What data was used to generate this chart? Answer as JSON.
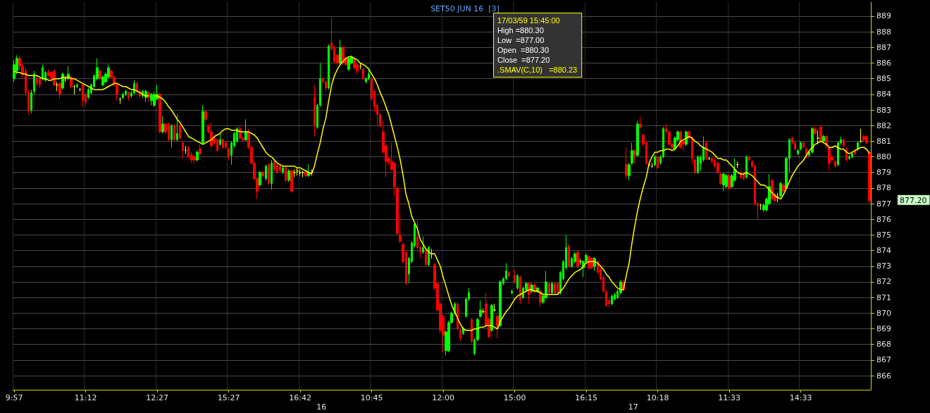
{
  "chart_data": {
    "type": "candlestick",
    "title": "SET50 JUN 16  [3]",
    "categories": [
      "9:57",
      null,
      null,
      null,
      null,
      null,
      null,
      null,
      null,
      null,
      null,
      null,
      null,
      null,
      null,
      null,
      null,
      null,
      null,
      null,
      null,
      null,
      null,
      null,
      null,
      "11:12",
      null,
      null,
      null,
      null,
      null,
      null,
      null,
      null,
      null,
      null,
      null,
      null,
      null,
      null,
      null,
      null,
      null,
      null,
      null,
      null,
      null,
      null,
      null,
      null,
      "12:27",
      null,
      null,
      null,
      null,
      null,
      null,
      null,
      null,
      null,
      null,
      null,
      null,
      null,
      null,
      null,
      null,
      null,
      null,
      null,
      null,
      null,
      null,
      null,
      null,
      "15:27",
      null,
      null,
      null,
      null,
      null,
      null,
      null,
      null,
      null,
      null,
      null,
      null,
      null,
      null,
      null,
      null,
      null,
      null,
      null,
      null,
      null,
      null,
      null,
      null,
      "16:42",
      null,
      null,
      null,
      null,
      null,
      null,
      null,
      null,
      null,
      null,
      null,
      null,
      null,
      null,
      null,
      null,
      null,
      null,
      null,
      null,
      null,
      null,
      null,
      null,
      "10:45",
      null,
      null,
      null,
      null,
      null,
      null,
      null,
      null,
      null,
      null,
      null,
      null,
      null,
      null,
      null,
      null,
      null,
      null,
      null,
      null,
      null,
      null,
      null,
      null,
      "12:00",
      null,
      null,
      null,
      null,
      null,
      null,
      null,
      null,
      null,
      null,
      null,
      null,
      null,
      null,
      null,
      null,
      null,
      null,
      null,
      null,
      null,
      null,
      null,
      null,
      "15:00",
      null,
      null,
      null,
      null,
      null,
      null,
      null,
      null,
      null,
      null,
      null,
      null,
      null,
      null,
      null,
      null,
      null,
      null,
      null,
      null,
      null,
      null,
      null,
      null,
      "16:15",
      null,
      null,
      null,
      null,
      null,
      null,
      null,
      null,
      null,
      null,
      null,
      null,
      null,
      null,
      null,
      null,
      null,
      null,
      null,
      null,
      null,
      null,
      null,
      null,
      "10:18",
      null,
      null,
      null,
      null,
      null,
      null,
      null,
      null,
      null,
      null,
      null,
      null,
      null,
      null,
      null,
      null,
      null,
      null,
      null,
      null,
      null,
      null,
      null,
      null,
      "11:33",
      null,
      null,
      null,
      null,
      null,
      null,
      null,
      null,
      null,
      null,
      null,
      null,
      null,
      null,
      null,
      null,
      null,
      null,
      null,
      null,
      null,
      null,
      null,
      null,
      "14:33",
      null,
      null,
      null,
      null,
      null,
      null,
      null,
      null,
      null,
      null,
      null,
      null,
      null,
      null,
      null,
      null,
      null,
      null,
      null,
      null,
      null,
      null,
      null,
      null
    ],
    "ylim": [
      865.1,
      889.9
    ],
    "yticks": [
      866,
      867,
      868,
      869,
      870,
      871,
      872,
      873,
      874,
      875,
      876,
      877,
      878,
      879,
      880,
      881,
      882,
      883,
      884,
      885,
      886,
      887,
      888,
      889
    ],
    "grid": true,
    "marker": "none",
    "annotations": [
      "17/03/59 15:45:00",
      "High =880.30",
      "Low  =877.00",
      "Open  =880.30",
      "Close  =877.20",
      ".SMAV(C,10)   =880.23",
      "877.20",
      "16",
      "17"
    ],
    "ohlc": [
      [
        885.0,
        886.2,
        884.8,
        885.9
      ],
      [
        885.5,
        886.5,
        885.3,
        886.3
      ],
      [
        886.3,
        886.5,
        885.6,
        885.8
      ],
      [
        885.8,
        886.0,
        885.1,
        885.3
      ],
      [
        885.5,
        885.7,
        883.9,
        884.1
      ],
      [
        884.1,
        884.3,
        882.7,
        883.0
      ],
      [
        883.0,
        884.3,
        882.8,
        884.1
      ],
      [
        884.2,
        885.5,
        884.0,
        885.3
      ],
      [
        885.0,
        885.2,
        884.5,
        884.7
      ],
      [
        885.0,
        885.1,
        884.4,
        884.6
      ],
      [
        885.0,
        885.9,
        884.9,
        885.7
      ],
      [
        884.9,
        885.5,
        884.8,
        885.4
      ],
      [
        885.4,
        885.6,
        885.1,
        885.2
      ],
      [
        885.4,
        885.5,
        884.9,
        885.0
      ],
      [
        885.5,
        885.6,
        884.5,
        884.6
      ],
      [
        884.6,
        884.8,
        884.2,
        884.6
      ],
      [
        884.7,
        884.8,
        883.7,
        884.0
      ],
      [
        884.4,
        885.4,
        884.3,
        885.3
      ],
      [
        885.0,
        885.1,
        884.8,
        885.0
      ],
      [
        885.0,
        885.8,
        884.9,
        885.3
      ],
      [
        885.1,
        885.2,
        884.4,
        884.5
      ],
      [
        884.5,
        884.6,
        884.0,
        884.5
      ],
      [
        884.5,
        884.7,
        884.4,
        884.6
      ],
      [
        884.3,
        884.4,
        884.2,
        884.3
      ],
      [
        884.6,
        884.7,
        883.2,
        883.6
      ],
      [
        884.0,
        884.1,
        883.3,
        883.5
      ],
      [
        883.8,
        884.4,
        883.7,
        884.3
      ],
      [
        884.1,
        884.7,
        884.0,
        884.6
      ],
      [
        884.5,
        885.3,
        884.4,
        885.2
      ],
      [
        885.0,
        886.3,
        884.9,
        885.7
      ],
      [
        885.5,
        885.6,
        884.9,
        885.0
      ],
      [
        884.6,
        885.2,
        884.5,
        885.1
      ],
      [
        884.8,
        885.4,
        884.7,
        885.3
      ],
      [
        885.1,
        885.9,
        885.0,
        885.7
      ],
      [
        885.5,
        885.6,
        885.0,
        885.1
      ],
      [
        885.1,
        885.2,
        884.5,
        884.6
      ],
      [
        884.6,
        884.7,
        883.6,
        884.0
      ],
      [
        883.7,
        883.8,
        883.4,
        883.7
      ],
      [
        883.8,
        884.1,
        883.7,
        884.0
      ],
      [
        884.0,
        884.3,
        883.9,
        884.2
      ],
      [
        884.1,
        884.2,
        883.6,
        883.8
      ],
      [
        883.9,
        884.2,
        883.8,
        884.1
      ],
      [
        884.1,
        884.9,
        884.0,
        884.7
      ],
      [
        884.7,
        884.8,
        884.1,
        884.2
      ],
      [
        884.2,
        884.3,
        883.8,
        883.9
      ],
      [
        883.9,
        884.3,
        883.8,
        884.2
      ],
      [
        883.8,
        884.3,
        883.5,
        884.2
      ],
      [
        884.1,
        884.2,
        883.5,
        883.8
      ],
      [
        883.6,
        884.1,
        883.3,
        884.0
      ],
      [
        883.3,
        884.2,
        883.2,
        884.0
      ],
      [
        883.7,
        884.6,
        883.6,
        884.0
      ],
      [
        884.0,
        884.1,
        881.5,
        881.6
      ],
      [
        881.6,
        882.6,
        881.5,
        882.1
      ],
      [
        882.1,
        882.2,
        881.5,
        881.6
      ],
      [
        882.1,
        882.2,
        881.0,
        881.1
      ],
      [
        881.1,
        882.1,
        880.6,
        882.0
      ],
      [
        882.0,
        882.1,
        881.0,
        881.1
      ],
      [
        881.1,
        882.7,
        881.0,
        881.5
      ],
      [
        882.0,
        882.1,
        881.1,
        881.2
      ],
      [
        880.9,
        881.0,
        879.9,
        880.4
      ],
      [
        880.4,
        880.7,
        880.2,
        880.4
      ],
      [
        880.6,
        880.7,
        879.9,
        880.0
      ],
      [
        880.1,
        880.3,
        879.6,
        879.8
      ],
      [
        880.0,
        880.1,
        879.6,
        879.8
      ],
      [
        879.8,
        880.4,
        879.7,
        880.3
      ],
      [
        880.5,
        880.8,
        880.1,
        880.2
      ],
      [
        880.9,
        883.3,
        880.8,
        882.9
      ],
      [
        882.9,
        883.0,
        882.3,
        882.4
      ],
      [
        882.0,
        882.1,
        881.5,
        881.6
      ],
      [
        881.6,
        882.2,
        880.6,
        880.7
      ],
      [
        881.2,
        881.3,
        880.8,
        880.9
      ],
      [
        881.1,
        881.2,
        880.3,
        880.4
      ],
      [
        880.8,
        881.5,
        880.7,
        881.1
      ],
      [
        881.1,
        881.2,
        880.5,
        880.6
      ],
      [
        880.9,
        881.0,
        880.5,
        880.6
      ],
      [
        880.5,
        880.6,
        879.8,
        880.0
      ],
      [
        880.1,
        881.0,
        879.5,
        880.9
      ],
      [
        880.7,
        881.6,
        880.6,
        881.5
      ],
      [
        881.0,
        881.9,
        880.9,
        881.8
      ],
      [
        881.8,
        882.0,
        881.1,
        881.2
      ],
      [
        881.2,
        881.3,
        881.0,
        881.1
      ],
      [
        881.1,
        882.4,
        881.0,
        881.6
      ],
      [
        881.6,
        881.8,
        880.5,
        880.6
      ],
      [
        880.6,
        880.7,
        879.5,
        879.6
      ],
      [
        879.6,
        879.7,
        878.5,
        878.6
      ],
      [
        878.6,
        878.7,
        877.3,
        877.8
      ],
      [
        878.2,
        879.1,
        878.1,
        879.0
      ],
      [
        879.0,
        879.1,
        878.7,
        878.8
      ],
      [
        878.6,
        879.5,
        878.5,
        879.4
      ],
      [
        879.5,
        879.6,
        878.2,
        878.3
      ],
      [
        878.3,
        879.8,
        877.9,
        879.6
      ],
      [
        879.7,
        879.8,
        879.1,
        879.2
      ],
      [
        879.5,
        879.6,
        878.9,
        879.0
      ],
      [
        879.4,
        879.5,
        879.0,
        879.1
      ],
      [
        879.0,
        879.4,
        878.9,
        879.3
      ],
      [
        879.3,
        879.4,
        878.4,
        878.5
      ],
      [
        878.5,
        879.2,
        878.4,
        879.1
      ],
      [
        879.1,
        879.2,
        877.7,
        877.8
      ],
      [
        879.0,
        879.2,
        878.7,
        879.0
      ],
      [
        879.1,
        879.3,
        878.8,
        879.1
      ],
      [
        879.0,
        879.2,
        878.8,
        879.0
      ],
      [
        879.0,
        879.1,
        878.7,
        879.0
      ],
      [
        879.0,
        879.1,
        878.7,
        878.8
      ],
      [
        878.8,
        879.5,
        878.7,
        879.0
      ],
      [
        879.0,
        879.2,
        878.8,
        879.0
      ],
      [
        883.8,
        884.6,
        881.3,
        882.0
      ],
      [
        881.9,
        883.4,
        881.8,
        883.3
      ],
      [
        883.3,
        886.0,
        883.2,
        885.0
      ],
      [
        885.0,
        885.1,
        884.7,
        884.8
      ],
      [
        884.8,
        884.9,
        884.2,
        884.4
      ],
      [
        884.4,
        887.2,
        884.3,
        887.1
      ],
      [
        887.3,
        888.9,
        886.8,
        886.9
      ],
      [
        887.0,
        887.1,
        886.0,
        886.1
      ],
      [
        886.5,
        886.6,
        885.9,
        886.0
      ],
      [
        886.0,
        887.5,
        885.9,
        887.0
      ],
      [
        887.0,
        887.1,
        885.9,
        886.0
      ],
      [
        886.3,
        886.4,
        885.8,
        885.9
      ],
      [
        885.6,
        886.4,
        885.5,
        886.3
      ],
      [
        886.0,
        886.5,
        885.9,
        886.4
      ],
      [
        886.3,
        886.4,
        885.6,
        885.7
      ],
      [
        885.9,
        886.0,
        885.3,
        885.5
      ],
      [
        885.8,
        886.0,
        885.6,
        885.8
      ],
      [
        885.6,
        885.7,
        884.9,
        885.0
      ],
      [
        884.8,
        885.1,
        884.7,
        885.0
      ],
      [
        885.0,
        885.7,
        884.9,
        885.3
      ],
      [
        885.0,
        885.1,
        883.6,
        883.7
      ],
      [
        884.2,
        884.3,
        882.9,
        883.2
      ],
      [
        883.3,
        883.4,
        882.0,
        882.7
      ],
      [
        882.7,
        882.8,
        881.9,
        882.0
      ],
      [
        881.6,
        882.3,
        880.2,
        880.3
      ],
      [
        880.7,
        880.8,
        878.7,
        879.7
      ],
      [
        879.9,
        880.0,
        879.5,
        879.7
      ],
      [
        879.7,
        880.9,
        879.1,
        879.2
      ],
      [
        879.6,
        879.7,
        877.5,
        878.1
      ],
      [
        878.0,
        878.1,
        875.0,
        875.1
      ],
      [
        875.0,
        876.3,
        874.5,
        874.6
      ],
      [
        874.4,
        874.5,
        873.2,
        873.3
      ],
      [
        873.9,
        874.0,
        871.8,
        871.9
      ],
      [
        872.5,
        873.6,
        871.9,
        873.5
      ],
      [
        873.3,
        874.6,
        873.2,
        874.5
      ],
      [
        874.3,
        875.8,
        874.2,
        875.7
      ],
      [
        874.9,
        876.0,
        874.1,
        874.2
      ],
      [
        874.2,
        874.3,
        873.5,
        873.9
      ],
      [
        873.9,
        874.9,
        873.8,
        874.2
      ],
      [
        874.0,
        874.1,
        873.0,
        873.1
      ],
      [
        873.1,
        874.3,
        873.0,
        874.2
      ],
      [
        873.8,
        874.1,
        873.5,
        873.8
      ],
      [
        873.1,
        873.2,
        871.5,
        871.6
      ],
      [
        871.9,
        872.0,
        870.1,
        870.2
      ],
      [
        870.6,
        870.7,
        868.7,
        868.9
      ],
      [
        869.8,
        869.9,
        867.5,
        868.6
      ],
      [
        867.6,
        868.9,
        867.3,
        868.8
      ],
      [
        867.6,
        869.5,
        867.5,
        869.4
      ],
      [
        869.4,
        870.1,
        869.3,
        870.0
      ],
      [
        870.0,
        870.7,
        869.9,
        870.6
      ],
      [
        870.6,
        870.7,
        868.9,
        869.0
      ],
      [
        868.9,
        869.0,
        868.2,
        868.4
      ],
      [
        868.7,
        869.1,
        868.6,
        869.0
      ],
      [
        869.8,
        871.0,
        869.7,
        870.9
      ],
      [
        870.9,
        871.6,
        870.8,
        871.3
      ],
      [
        869.6,
        869.7,
        868.1,
        868.2
      ],
      [
        867.4,
        868.4,
        867.3,
        868.3
      ],
      [
        868.3,
        869.7,
        868.2,
        869.6
      ],
      [
        869.8,
        870.8,
        869.7,
        870.2
      ],
      [
        870.1,
        870.3,
        870.0,
        870.1
      ],
      [
        870.6,
        871.3,
        869.1,
        869.2
      ],
      [
        869.6,
        869.7,
        868.4,
        868.5
      ],
      [
        868.9,
        870.6,
        868.8,
        870.5
      ],
      [
        870.2,
        870.6,
        870.1,
        870.2
      ],
      [
        869.8,
        869.9,
        868.4,
        869.2
      ],
      [
        869.2,
        872.1,
        869.1,
        872.0
      ],
      [
        871.9,
        872.3,
        871.8,
        872.2
      ],
      [
        872.2,
        873.2,
        872.1,
        872.7
      ],
      [
        872.6,
        872.7,
        872.3,
        872.4
      ],
      [
        871.3,
        871.5,
        871.2,
        871.4
      ],
      [
        872.4,
        872.8,
        871.9,
        872.0
      ],
      [
        871.6,
        872.5,
        871.5,
        872.4
      ],
      [
        872.3,
        872.4,
        870.6,
        870.9
      ],
      [
        871.0,
        871.7,
        870.9,
        871.6
      ],
      [
        871.5,
        872.0,
        871.4,
        871.9
      ],
      [
        871.9,
        872.0,
        870.6,
        871.2
      ],
      [
        871.4,
        871.9,
        871.3,
        871.8
      ],
      [
        871.8,
        871.9,
        871.3,
        871.4
      ],
      [
        871.4,
        871.7,
        871.3,
        871.6
      ],
      [
        871.4,
        871.5,
        870.4,
        870.7
      ],
      [
        870.7,
        871.2,
        870.6,
        871.1
      ],
      [
        871.0,
        872.7,
        870.9,
        872.0
      ],
      [
        871.9,
        872.0,
        871.2,
        871.3
      ],
      [
        871.3,
        872.0,
        871.2,
        871.9
      ],
      [
        871.9,
        872.0,
        871.2,
        871.3
      ],
      [
        871.9,
        872.0,
        871.2,
        871.3
      ],
      [
        871.3,
        872.7,
        871.2,
        872.6
      ],
      [
        872.2,
        873.4,
        872.1,
        873.3
      ],
      [
        872.9,
        875.0,
        872.8,
        874.2
      ],
      [
        874.3,
        874.4,
        872.9,
        873.0
      ],
      [
        873.0,
        873.6,
        872.9,
        873.5
      ],
      [
        873.3,
        873.9,
        873.2,
        873.8
      ],
      [
        873.9,
        874.0,
        872.9,
        873.0
      ],
      [
        873.3,
        873.5,
        873.1,
        873.3
      ],
      [
        872.9,
        873.4,
        872.3,
        873.3
      ],
      [
        873.3,
        873.8,
        873.2,
        873.7
      ],
      [
        873.6,
        873.7,
        872.8,
        872.9
      ],
      [
        873.5,
        873.6,
        872.8,
        872.9
      ],
      [
        873.0,
        873.6,
        872.7,
        873.5
      ],
      [
        873.3,
        873.4,
        872.5,
        872.6
      ],
      [
        872.8,
        872.9,
        872.1,
        872.2
      ],
      [
        872.3,
        872.4,
        871.3,
        871.4
      ],
      [
        871.4,
        871.5,
        870.4,
        870.5
      ],
      [
        870.8,
        870.9,
        870.4,
        870.6
      ],
      [
        870.6,
        871.2,
        870.5,
        871.1
      ],
      [
        870.9,
        871.3,
        870.8,
        871.2
      ],
      [
        871.0,
        871.5,
        870.9,
        871.4
      ],
      [
        871.3,
        872.1,
        871.2,
        872.0
      ],
      [
        872.0,
        872.1,
        871.4,
        871.5
      ],
      [
        879.5,
        880.6,
        878.6,
        878.8
      ],
      [
        878.8,
        879.6,
        878.5,
        879.5
      ],
      [
        879.6,
        880.9,
        879.5,
        880.4
      ],
      [
        880.4,
        880.5,
        879.6,
        880.1
      ],
      [
        880.1,
        882.3,
        880.0,
        882.1
      ],
      [
        882.1,
        882.6,
        881.8,
        881.9
      ],
      [
        881.4,
        881.5,
        880.7,
        880.8
      ],
      [
        880.9,
        881.0,
        879.5,
        879.6
      ],
      [
        879.5,
        879.7,
        879.4,
        879.5
      ],
      [
        879.4,
        879.6,
        879.3,
        879.4
      ],
      [
        879.5,
        880.1,
        879.4,
        880.0
      ],
      [
        880.0,
        880.1,
        879.2,
        879.3
      ],
      [
        879.6,
        880.1,
        879.5,
        880.0
      ],
      [
        880.0,
        881.9,
        879.9,
        881.8
      ],
      [
        881.8,
        882.1,
        881.5,
        881.6
      ],
      [
        881.6,
        881.7,
        880.7,
        880.8
      ],
      [
        880.8,
        880.9,
        880.5,
        880.6
      ],
      [
        880.5,
        881.3,
        880.4,
        881.2
      ],
      [
        881.1,
        881.7,
        881.0,
        881.6
      ],
      [
        881.6,
        881.7,
        880.5,
        880.6
      ],
      [
        881.0,
        881.1,
        880.4,
        880.8
      ],
      [
        880.8,
        881.7,
        880.7,
        881.6
      ],
      [
        881.6,
        881.7,
        881.1,
        881.2
      ],
      [
        881.2,
        881.3,
        879.5,
        879.9
      ],
      [
        879.8,
        879.9,
        878.9,
        879.0
      ],
      [
        879.0,
        880.1,
        878.9,
        880.0
      ],
      [
        879.6,
        880.1,
        879.1,
        880.0
      ],
      [
        879.8,
        881.3,
        879.7,
        880.6
      ],
      [
        880.9,
        881.0,
        879.8,
        879.9
      ],
      [
        879.9,
        880.0,
        879.8,
        879.9
      ],
      [
        879.9,
        880.0,
        879.6,
        879.7
      ],
      [
        879.8,
        879.9,
        879.3,
        879.4
      ],
      [
        879.6,
        879.7,
        878.9,
        879.0
      ],
      [
        878.9,
        879.0,
        878.2,
        878.3
      ],
      [
        878.2,
        879.0,
        877.8,
        878.9
      ],
      [
        878.1,
        878.9,
        878.0,
        878.8
      ],
      [
        878.8,
        878.9,
        877.9,
        878.0
      ],
      [
        878.1,
        878.9,
        878.0,
        878.8
      ],
      [
        878.5,
        879.9,
        878.4,
        879.2
      ],
      [
        879.5,
        879.7,
        879.3,
        879.5
      ],
      [
        879.0,
        879.1,
        878.6,
        878.7
      ],
      [
        878.9,
        879.0,
        878.5,
        878.6
      ],
      [
        878.7,
        880.1,
        878.6,
        880.0
      ],
      [
        880.0,
        880.1,
        879.7,
        879.8
      ],
      [
        879.7,
        879.8,
        879.3,
        879.4
      ],
      [
        879.4,
        879.5,
        876.9,
        877.0
      ],
      [
        877.0,
        877.1,
        876.0,
        876.9
      ],
      [
        876.9,
        877.0,
        876.6,
        876.9
      ],
      [
        876.6,
        877.0,
        876.5,
        876.9
      ],
      [
        876.6,
        877.4,
        876.5,
        877.3
      ],
      [
        877.0,
        878.9,
        876.9,
        878.1
      ],
      [
        878.5,
        878.6,
        877.2,
        877.3
      ],
      [
        877.6,
        877.7,
        877.1,
        877.2
      ],
      [
        877.4,
        877.7,
        877.1,
        877.4
      ],
      [
        877.5,
        878.4,
        877.4,
        878.3
      ],
      [
        878.2,
        878.3,
        877.7,
        877.8
      ],
      [
        878.0,
        880.0,
        877.9,
        879.9
      ],
      [
        879.9,
        881.2,
        879.0,
        881.1
      ],
      [
        881.2,
        881.3,
        880.8,
        880.9
      ],
      [
        880.9,
        881.0,
        880.4,
        880.5
      ],
      [
        880.2,
        880.5,
        880.1,
        880.4
      ],
      [
        880.5,
        881.0,
        880.4,
        880.9
      ],
      [
        880.9,
        881.0,
        880.5,
        880.6
      ],
      [
        880.5,
        880.6,
        879.9,
        880.0
      ],
      [
        880.1,
        880.4,
        880.0,
        880.3
      ],
      [
        880.3,
        881.9,
        880.2,
        881.8
      ],
      [
        881.8,
        882.0,
        881.4,
        881.5
      ],
      [
        881.2,
        881.7,
        880.8,
        881.2
      ],
      [
        881.9,
        882.0,
        880.9,
        881.0
      ],
      [
        881.0,
        881.4,
        880.9,
        881.3
      ],
      [
        881.3,
        881.4,
        880.6,
        880.7
      ],
      [
        880.6,
        880.7,
        879.1,
        879.6
      ],
      [
        880.0,
        880.1,
        879.7,
        879.8
      ],
      [
        879.7,
        879.8,
        879.3,
        879.4
      ],
      [
        879.5,
        881.0,
        879.4,
        880.9
      ],
      [
        880.9,
        881.3,
        880.8,
        881.1
      ],
      [
        881.1,
        881.2,
        880.6,
        880.7
      ],
      [
        880.5,
        880.6,
        879.7,
        879.8
      ],
      [
        879.9,
        880.1,
        879.8,
        880.0
      ],
      [
        880.0,
        880.3,
        879.9,
        880.2
      ],
      [
        880.4,
        880.5,
        880.1,
        880.2
      ],
      [
        880.5,
        881.0,
        880.4,
        880.9
      ],
      [
        881.0,
        881.8,
        880.9,
        881.0
      ],
      [
        881.3,
        881.4,
        880.9,
        881.1
      ],
      [
        881.3,
        881.4,
        880.8,
        880.9
      ],
      [
        880.3,
        880.3,
        877.0,
        877.2
      ]
    ],
    "colors": [
      "#00ff00",
      "#00ff00",
      "#ff0000",
      "#ff0000",
      "#ff0000",
      "#ff0000",
      "#00ff00",
      "#00ff00",
      "#ff0000",
      "#ff0000",
      "#00ff00",
      "#00ff00",
      "#ff0000",
      "#ff0000",
      "#ff0000",
      "#ffff00",
      "#ff0000",
      "#00ff00",
      "#ffff00",
      "#00ff00",
      "#ff0000",
      "#ffff00",
      "#00ff00",
      "#ffff00",
      "#ff0000",
      "#ff0000",
      "#00ff00",
      "#00ff00",
      "#00ff00",
      "#00ff00",
      "#ff0000",
      "#00ff00",
      "#00ff00",
      "#00ff00",
      "#ff0000",
      "#ff0000",
      "#ff0000",
      "#ffff00",
      "#00ff00",
      "#00ff00",
      "#ff0000",
      "#00ff00",
      "#00ff00",
      "#ff0000",
      "#ff0000",
      "#00ff00",
      "#00ff00",
      "#ff0000",
      "#00ff00",
      "#00ff00",
      "#00ff00",
      "#ff0000",
      "#00ff00",
      "#ff0000",
      "#ff0000",
      "#00ff00",
      "#ff0000",
      "#00ff00",
      "#ff0000",
      "#ff0000",
      "#ffff00",
      "#ff0000",
      "#ff0000",
      "#ff0000",
      "#00ff00",
      "#ff0000",
      "#00ff00",
      "#ff0000",
      "#ff0000",
      "#ff0000",
      "#ff0000",
      "#ff0000",
      "#00ff00",
      "#ff0000",
      "#ff0000",
      "#ff0000",
      "#00ff00",
      "#00ff00",
      "#00ff00",
      "#ff0000",
      "#ff0000",
      "#00ff00",
      "#ff0000",
      "#ff0000",
      "#ff0000",
      "#ff0000",
      "#00ff00",
      "#ff0000",
      "#00ff00",
      "#ff0000",
      "#00ff00",
      "#ff0000",
      "#ff0000",
      "#ff0000",
      "#00ff00",
      "#ff0000",
      "#00ff00",
      "#ff0000",
      "#ffff00",
      "#ffff00",
      "#ffff00",
      "#ffff00",
      "#ff0000",
      "#00ff00",
      "#ffff00",
      "#ff0000",
      "#00ff00",
      "#00ff00",
      "#ff0000",
      "#ff0000",
      "#00ff00",
      "#ff0000",
      "#ff0000",
      "#ff0000",
      "#00ff00",
      "#ff0000",
      "#ff0000",
      "#00ff00",
      "#00ff00",
      "#ff0000",
      "#ff0000",
      "#ffff00",
      "#ff0000",
      "#00ff00",
      "#00ff00",
      "#ff0000",
      "#ff0000",
      "#ff0000",
      "#ff0000",
      "#ff0000",
      "#ff0000",
      "#ff0000",
      "#ff0000",
      "#ff0000",
      "#ff0000",
      "#ff0000",
      "#ff0000",
      "#ff0000",
      "#00ff00",
      "#00ff00",
      "#00ff00",
      "#ff0000",
      "#ff0000",
      "#00ff00",
      "#ff0000",
      "#00ff00",
      "#ffff00",
      "#ff0000",
      "#ff0000",
      "#ff0000",
      "#ff0000",
      "#00ff00",
      "#00ff00",
      "#00ff00",
      "#00ff00",
      "#ff0000",
      "#ff0000",
      "#00ff00",
      "#00ff00",
      "#00ff00",
      "#ff0000",
      "#00ff00",
      "#00ff00",
      "#00ff00",
      "#ffff00",
      "#ff0000",
      "#ff0000",
      "#00ff00",
      "#ffff00",
      "#ff0000",
      "#00ff00",
      "#00ff00",
      "#00ff00",
      "#ff0000",
      "#00ff00",
      "#ff0000",
      "#00ff00",
      "#ff0000",
      "#00ff00",
      "#00ff00",
      "#ff0000",
      "#00ff00",
      "#ff0000",
      "#00ff00",
      "#ff0000",
      "#00ff00",
      "#00ff00",
      "#ff0000",
      "#00ff00",
      "#ff0000",
      "#ff0000",
      "#00ff00",
      "#00ff00",
      "#00ff00",
      "#ff0000",
      "#00ff00",
      "#00ff00",
      "#ff0000",
      "#ffff00",
      "#00ff00",
      "#00ff00",
      "#ff0000",
      "#ff0000",
      "#00ff00",
      "#ff0000",
      "#ff0000",
      "#ff0000",
      "#ff0000",
      "#ff0000",
      "#00ff00",
      "#00ff00",
      "#00ff00",
      "#00ff00",
      "#ff0000",
      "#ff0000",
      "#00ff00",
      "#00ff00",
      "#ff0000",
      "#00ff00",
      "#ff0000",
      "#ff0000",
      "#ff0000",
      "#ffff00",
      "#ffff00",
      "#00ff00",
      "#ff0000",
      "#00ff00",
      "#00ff00",
      "#ff0000",
      "#ff0000",
      "#ff0000",
      "#00ff00",
      "#00ff00",
      "#ff0000",
      "#ff0000",
      "#00ff00",
      "#ff0000",
      "#ff0000",
      "#ff0000",
      "#00ff00",
      "#00ff00",
      "#00ff00",
      "#ff0000",
      "#ffff00",
      "#ff0000",
      "#ff0000",
      "#ff0000",
      "#ff0000",
      "#00ff00",
      "#00ff00",
      "#ff0000",
      "#00ff00",
      "#00ff00",
      "#ffff00",
      "#ff0000",
      "#ff0000",
      "#00ff00",
      "#ff0000",
      "#ff0000",
      "#ff0000",
      "#ff0000",
      "#ffff00",
      "#00ff00",
      "#00ff00",
      "#00ff00",
      "#ff0000",
      "#ff0000",
      "#ffff00",
      "#00ff00",
      "#ff0000",
      "#00ff00",
      "#00ff00",
      "#ff0000",
      "#ff0000",
      "#00ff00",
      "#00ff00",
      "#ff0000",
      "#ff0000",
      "#00ff00",
      "#00ff00",
      "#ff0000",
      "#ffff00",
      "#ff0000",
      "#00ff00",
      "#ff0000",
      "#ff0000",
      "#ff0000",
      "#ff0000",
      "#00ff00",
      "#00ff00",
      "#ff0000",
      "#ff0000",
      "#00ff00",
      "#00ff00",
      "#ff0000",
      "#00ff00",
      "#ffff00",
      "#ff0000",
      "#ff0000",
      "#ff0000"
    ],
    "series": [
      {
        "type": "line",
        "color": "#ffff00",
        "values": [
          885.5,
          885.4,
          885.4,
          885.3,
          885.3,
          885.2,
          885.2,
          885.2,
          885.2,
          885.1,
          885.0,
          885.0,
          884.9,
          884.9,
          885.0,
          885.0,
          885.0,
          885.1,
          885.1,
          885.1,
          885.0,
          885.0,
          884.9,
          884.8,
          884.7,
          884.6,
          884.5,
          884.4,
          884.3,
          884.3,
          884.3,
          884.3,
          884.4,
          884.5,
          884.6,
          884.7,
          884.7,
          884.6,
          884.5,
          884.5,
          884.4,
          884.3,
          884.3,
          884.2,
          884.1,
          884.0,
          883.9,
          883.9,
          null,
          883.9,
          883.9,
          883.8,
          883.7,
          883.5,
          883.2,
          883.0,
          882.7,
          882.4,
          882.2,
          881.9,
          881.6,
          881.3,
          881.2,
          881.1,
          881.0,
          880.9,
          880.8,
          880.9,
          881.0,
          881.1,
          881.3,
          881.4,
          881.5,
          881.7,
          881.8,
          881.8,
          881.7,
          881.7,
          881.7,
          881.6,
          881.6,
          881.6,
          881.6,
          881.5,
          881.4,
          881.2,
          880.9,
          880.6,
          880.3,
          880.1,
          880.0,
          879.8,
          879.6,
          879.5,
          879.4,
          879.4,
          879.4,
          879.4,
          879.4,
          879.3,
          879.3,
          879.2,
          879.1,
          879.0,
          878.9,
          879.4,
          880.2,
          880.9,
          881.8,
          882.5,
          883.6,
          884.6,
          885.2,
          885.6,
          885.9,
          886.1,
          886.3,
          886.4,
          886.4,
          886.3,
          886.2,
          886.0,
          885.9,
          885.8,
          885.6,
          885.3,
          885.0,
          884.6,
          884.1,
          883.7,
          883.2,
          882.7,
          882.0,
          881.3,
          880.6,
          879.8,
          878.8,
          877.6,
          877.0,
          876.2,
          875.8,
          875.4,
          874.7,
          874.4,
          874.1,
          873.9,
          873.8,
          873.8,
          873.4,
          873.0,
          872.3,
          871.7,
          871.1,
          870.5,
          870.1,
          869.7,
          869.3,
          869.0,
          868.9,
          868.9,
          868.9,
          869.0,
          869.0,
          869.1,
          869.1,
          869.2,
          869.2,
          869.2,
          869.1,
          869.0,
          869.5,
          869.8,
          870.1,
          870.3,
          870.6,
          870.9,
          871.1,
          871.2,
          871.3,
          871.4,
          871.5,
          871.5,
          871.4,
          871.4,
          871.3,
          871.2,
          871.2,
          871.2,
          871.2,
          871.2,
          871.2,
          871.4,
          871.6,
          871.9,
          872.2,
          872.4,
          872.6,
          872.7,
          872.8,
          873.0,
          873.2,
          873.3,
          873.3,
          873.3,
          873.2,
          873.0,
          872.8,
          872.5,
          872.3,
          872.0,
          871.8,
          871.6,
          871.5,
          871.5,
          872.4,
          873.2,
          874.5,
          875.6,
          876.6,
          877.4,
          878.1,
          878.7,
          879.6,
          880.0,
          880.3,
          880.3,
          880.4,
          880.4,
          880.5,
          880.5,
          880.4,
          880.5,
          880.7,
          881.0,
          881.1,
          881.2,
          881.3,
          881.2,
          881.0,
          880.9,
          880.7,
          880.6,
          880.5,
          880.4,
          880.3,
          880.1,
          879.9,
          879.9,
          879.8,
          879.8,
          879.6,
          879.4,
          879.2,
          879.0,
          878.9,
          878.9,
          879.0,
          878.9,
          878.8,
          878.6,
          878.4,
          878.2,
          878.2,
          878.1,
          877.9,
          877.7,
          877.5,
          877.4,
          877.3,
          877.6,
          878.0,
          878.4,
          878.8,
          879.1,
          879.4,
          879.6,
          879.8,
          880.1,
          880.4,
          880.6,
          880.8,
          880.9,
          881.0,
          880.9,
          880.8,
          880.6,
          880.6,
          880.7,
          880.6,
          880.5,
          880.5,
          880.3,
          880.2,
          880.3,
          880.4,
          880.5,
          880.6,
          880.6,
          880.5,
          880.23
        ]
      }
    ]
  }
}
